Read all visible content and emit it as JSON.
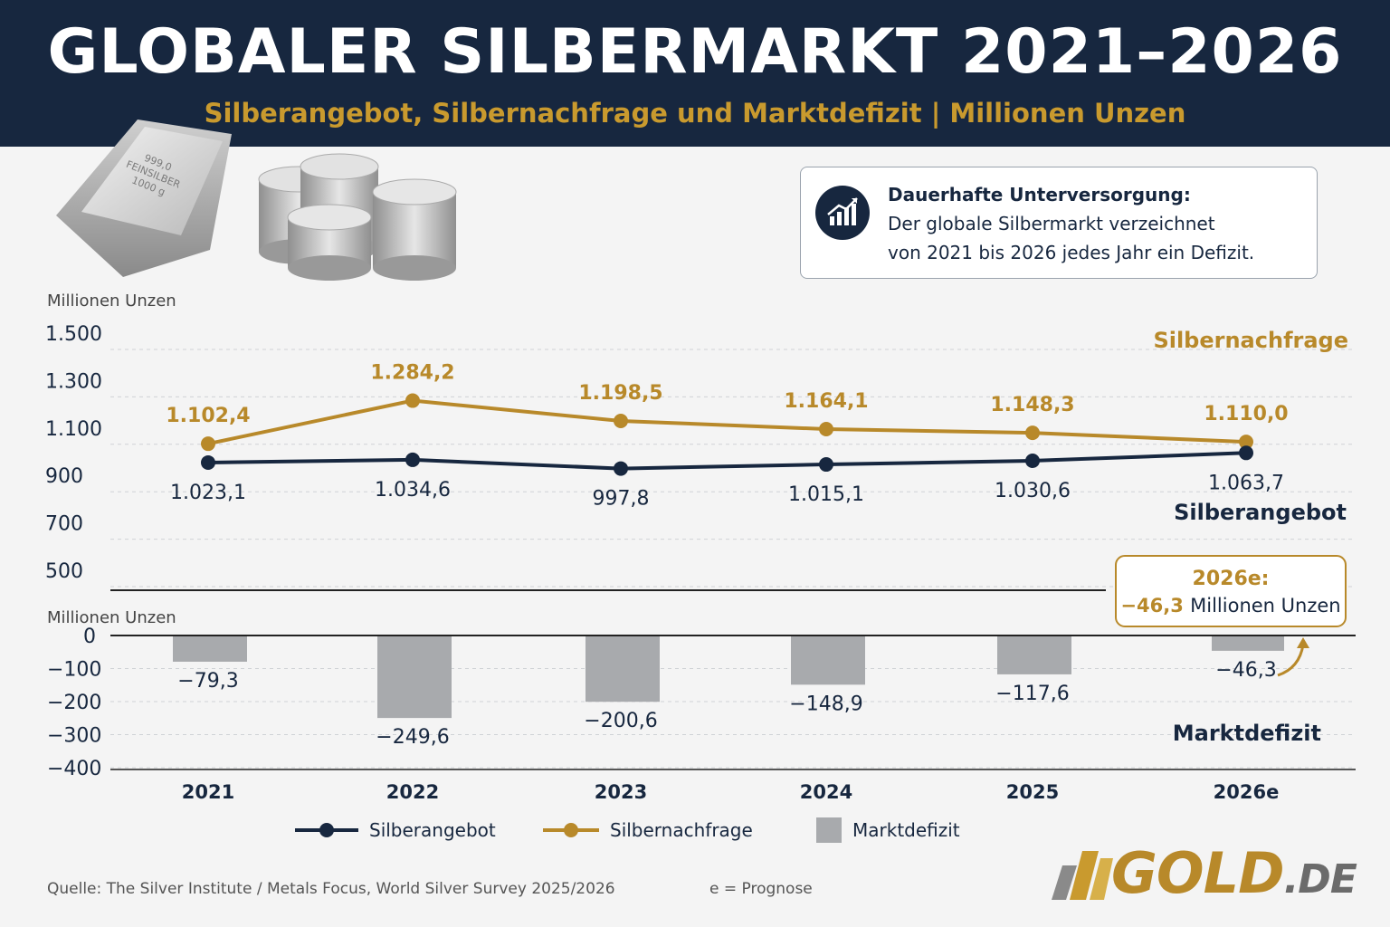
{
  "header": {
    "title": "GLOBALER SILBERMARKT 2021–2026",
    "subtitle": "Silberangebot, Silbernachfrage und Marktdefizit | Millionen Unzen"
  },
  "bar_engraving": [
    "999,0",
    "FEINSILBER",
    "1000 g"
  ],
  "callout": {
    "title": "Dauerhafte Unterversorgung:",
    "line1": "Der globale Silbermarkt verzeichnet",
    "line2": "von 2021 bis 2026 jedes Jahr ein Defizit.",
    "icon": "chart-trend-up-icon"
  },
  "colors": {
    "navy": "#17273f",
    "gold": "#b8892a",
    "gray_bar": "#a8aaad"
  },
  "chart_data": [
    {
      "type": "line",
      "ylabel": "Millionen Unzen",
      "yticks": [
        "1.500",
        "1.300",
        "1.100",
        "900",
        "700",
        "500"
      ],
      "ylim": [
        500,
        1500
      ],
      "categories": [
        "2021",
        "2022",
        "2023",
        "2024",
        "2025",
        "2026e"
      ],
      "series": [
        {
          "name": "Silbernachfrage",
          "values": [
            1102.4,
            1284.2,
            1198.5,
            1164.1,
            1148.3,
            1110.0
          ],
          "labels": [
            "1.102,4",
            "1.284,2",
            "1.198,5",
            "1.164,1",
            "1.148,3",
            "1.110,0"
          ],
          "color": "#b8892a"
        },
        {
          "name": "Silberangebot",
          "values": [
            1023.1,
            1034.6,
            997.8,
            1015.1,
            1030.6,
            1063.7
          ],
          "labels": [
            "1.023,1",
            "1.034,6",
            "997,8",
            "1.015,1",
            "1.030,6",
            "1.063,7"
          ],
          "color": "#17273f"
        }
      ],
      "grid": true
    },
    {
      "type": "bar",
      "ylabel": "Millionen Unzen",
      "yticks": [
        "0",
        "−100",
        "−200",
        "−300",
        "−400"
      ],
      "ylim": [
        -400,
        0
      ],
      "categories": [
        "2021",
        "2022",
        "2023",
        "2024",
        "2025",
        "2026e"
      ],
      "series": [
        {
          "name": "Marktdefizit",
          "values": [
            -79.3,
            -249.6,
            -200.6,
            -148.9,
            -117.6,
            -46.3
          ],
          "labels": [
            "−79,3",
            "−249,6",
            "−200,6",
            "−148,9",
            "−117,6",
            "−46,3"
          ],
          "color": "#a8aaad"
        }
      ],
      "annotation": {
        "title": "2026e:",
        "value": "−46,3",
        "unit": "Millionen Unzen"
      }
    }
  ],
  "legend": {
    "supply": "Silberangebot",
    "demand": "Silbernachfrage",
    "deficit": "Marktdefizit"
  },
  "footer": {
    "source": "Quelle: The Silver Institute / Metals Focus, World Silver Survey 2025/2026",
    "note": "e = Prognose"
  },
  "logo": {
    "main": "GOLD",
    "suffix": ".DE"
  }
}
